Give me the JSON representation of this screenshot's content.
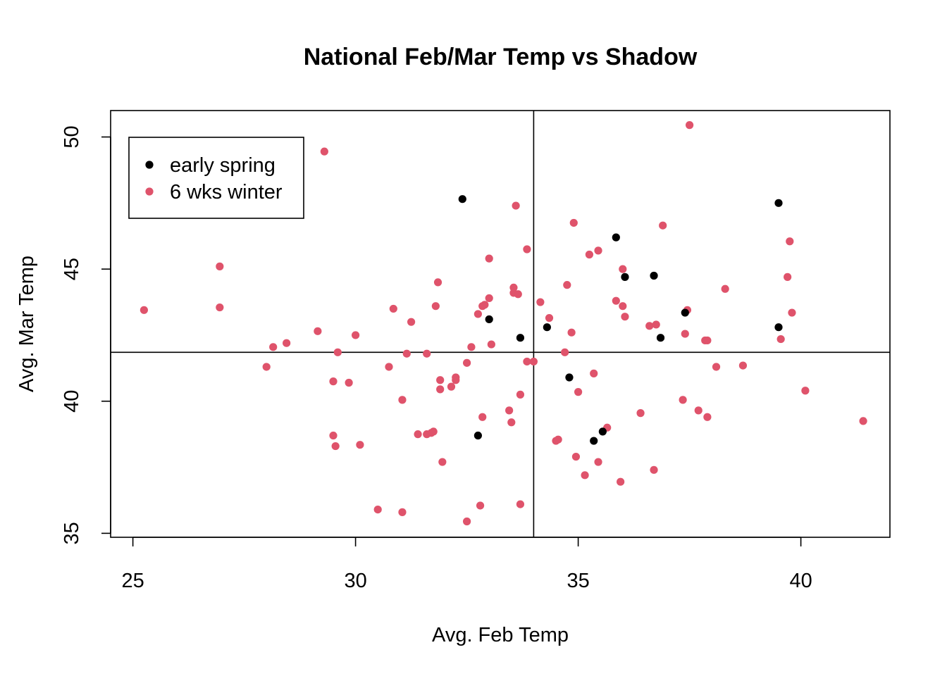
{
  "chart_data": {
    "type": "scatter",
    "title": "National Feb/Mar Temp vs Shadow",
    "xlabel": "Avg. Feb Temp",
    "ylabel": "Avg. Mar Temp",
    "xlim": [
      24.5,
      42.0
    ],
    "ylim": [
      34.85,
      51.0
    ],
    "x_ticks": [
      25,
      30,
      35,
      40
    ],
    "y_ticks": [
      35,
      40,
      45,
      50
    ],
    "grid": false,
    "legend_position": "top-left",
    "reference_lines": {
      "vertical_x": 34.0,
      "horizontal_y": 41.85
    },
    "series": [
      {
        "name": "early spring",
        "color": "#000000",
        "points": [
          [
            32.4,
            47.65
          ],
          [
            39.5,
            47.5
          ],
          [
            35.85,
            46.2
          ],
          [
            36.05,
            44.7
          ],
          [
            36.7,
            44.75
          ],
          [
            33.0,
            43.1
          ],
          [
            33.7,
            42.4
          ],
          [
            34.3,
            42.8
          ],
          [
            37.4,
            43.35
          ],
          [
            36.85,
            42.4
          ],
          [
            39.5,
            42.8
          ],
          [
            34.8,
            40.9
          ],
          [
            32.75,
            38.7
          ],
          [
            35.35,
            38.5
          ],
          [
            35.55,
            38.85
          ]
        ]
      },
      {
        "name": "6 wks winter",
        "color": "#DF536B",
        "points": [
          [
            25.25,
            43.45
          ],
          [
            26.95,
            45.1
          ],
          [
            26.95,
            43.55
          ],
          [
            29.3,
            49.45
          ],
          [
            28.0,
            41.3
          ],
          [
            28.15,
            42.05
          ],
          [
            28.45,
            42.2
          ],
          [
            29.15,
            42.65
          ],
          [
            30.0,
            42.5
          ],
          [
            29.6,
            41.85
          ],
          [
            29.5,
            40.75
          ],
          [
            29.85,
            40.7
          ],
          [
            29.5,
            38.7
          ],
          [
            29.55,
            38.3
          ],
          [
            30.1,
            38.35
          ],
          [
            30.5,
            35.9
          ],
          [
            30.75,
            41.3
          ],
          [
            30.85,
            43.5
          ],
          [
            31.05,
            40.05
          ],
          [
            31.15,
            41.8
          ],
          [
            31.25,
            43.0
          ],
          [
            31.05,
            35.8
          ],
          [
            31.4,
            38.75
          ],
          [
            31.6,
            41.8
          ],
          [
            31.6,
            38.75
          ],
          [
            31.7,
            38.8
          ],
          [
            31.75,
            38.85
          ],
          [
            31.8,
            43.6
          ],
          [
            31.85,
            44.5
          ],
          [
            31.9,
            40.8
          ],
          [
            31.9,
            40.45
          ],
          [
            31.95,
            37.7
          ],
          [
            32.15,
            40.55
          ],
          [
            32.25,
            40.8
          ],
          [
            32.25,
            40.9
          ],
          [
            32.5,
            41.45
          ],
          [
            32.5,
            35.45
          ],
          [
            32.6,
            42.05
          ],
          [
            32.75,
            43.3
          ],
          [
            32.85,
            43.6
          ],
          [
            32.85,
            39.4
          ],
          [
            32.8,
            36.05
          ],
          [
            32.9,
            43.65
          ],
          [
            33.0,
            45.4
          ],
          [
            33.0,
            43.9
          ],
          [
            33.05,
            42.15
          ],
          [
            33.45,
            39.65
          ],
          [
            33.5,
            39.2
          ],
          [
            33.55,
            44.1
          ],
          [
            33.55,
            44.3
          ],
          [
            33.6,
            47.4
          ],
          [
            33.65,
            44.05
          ],
          [
            33.7,
            40.25
          ],
          [
            33.7,
            36.1
          ],
          [
            33.85,
            45.75
          ],
          [
            33.85,
            41.5
          ],
          [
            34.0,
            41.5
          ],
          [
            34.15,
            43.75
          ],
          [
            34.35,
            43.15
          ],
          [
            34.5,
            38.5
          ],
          [
            34.55,
            38.55
          ],
          [
            34.7,
            41.85
          ],
          [
            34.75,
            44.4
          ],
          [
            34.85,
            42.6
          ],
          [
            34.9,
            46.75
          ],
          [
            34.95,
            37.9
          ],
          [
            35.0,
            40.35
          ],
          [
            35.15,
            37.2
          ],
          [
            35.25,
            45.55
          ],
          [
            35.35,
            41.05
          ],
          [
            35.45,
            45.7
          ],
          [
            35.45,
            37.7
          ],
          [
            35.65,
            39.0
          ],
          [
            35.85,
            43.8
          ],
          [
            35.95,
            36.95
          ],
          [
            36.0,
            45.0
          ],
          [
            36.0,
            43.6
          ],
          [
            36.05,
            43.2
          ],
          [
            36.4,
            39.55
          ],
          [
            36.6,
            42.85
          ],
          [
            36.7,
            37.4
          ],
          [
            36.75,
            42.9
          ],
          [
            36.9,
            46.65
          ],
          [
            37.35,
            40.05
          ],
          [
            37.4,
            42.55
          ],
          [
            37.45,
            43.45
          ],
          [
            37.5,
            50.45
          ],
          [
            37.7,
            39.65
          ],
          [
            37.85,
            42.3
          ],
          [
            37.9,
            42.3
          ],
          [
            37.9,
            39.4
          ],
          [
            38.1,
            41.3
          ],
          [
            38.3,
            44.25
          ],
          [
            38.7,
            41.35
          ],
          [
            39.55,
            42.35
          ],
          [
            39.7,
            44.7
          ],
          [
            39.75,
            46.05
          ],
          [
            39.8,
            43.35
          ],
          [
            40.1,
            40.4
          ],
          [
            41.4,
            39.25
          ]
        ]
      }
    ]
  }
}
